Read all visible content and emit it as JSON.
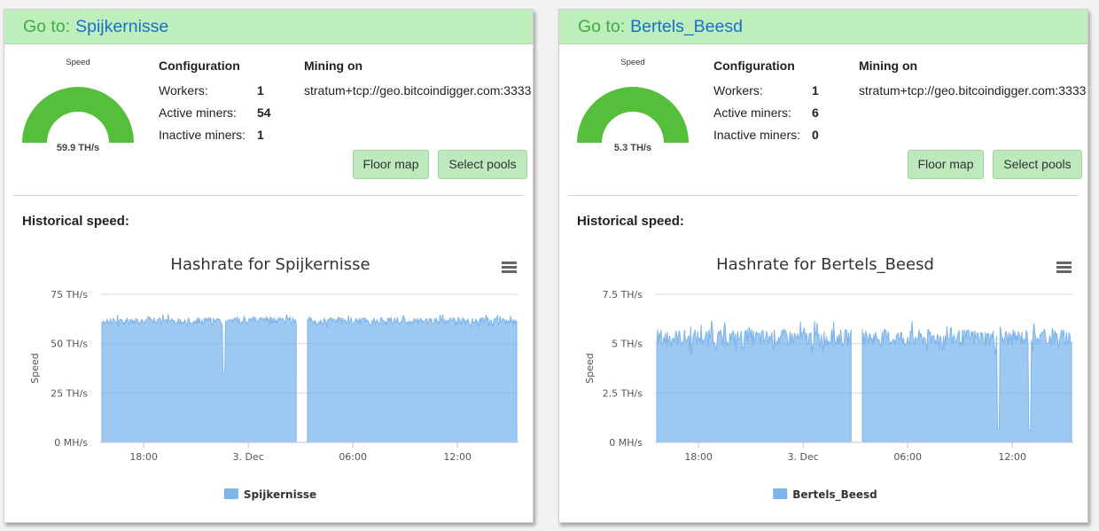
{
  "sites": [
    {
      "goto_label": "Go to:",
      "name": "Spijkernisse",
      "gauge": {
        "title": "Speed",
        "value_text": "59.9 TH/s",
        "fraction": 1.0,
        "color": "#55bf3b"
      },
      "config": {
        "heading": "Configuration",
        "workers_label": "Workers:",
        "workers": "1",
        "active_label": "Active miners:",
        "active": "54",
        "inactive_label": "Inactive miners:",
        "inactive": "1"
      },
      "mining": {
        "heading": "Mining on",
        "url": "stratum+tcp://geo.bitcoindigger.com:3333"
      },
      "buttons": {
        "floor_map": "Floor map",
        "select_pools": "Select pools"
      },
      "historical_label": "Historical speed:",
      "chart_data": {
        "type": "area",
        "title": "Hashrate for Spijkernisse",
        "ylabel": "Speed",
        "yticks": [
          "0 MH/s",
          "25 TH/s",
          "50 TH/s",
          "75 TH/s"
        ],
        "ylim": [
          0,
          75
        ],
        "x_ticks": [
          {
            "label": "18:00",
            "hour": 18
          },
          {
            "label": "3. Dec",
            "hour": 24
          },
          {
            "label": "06:00",
            "hour": 30
          },
          {
            "label": "12:00",
            "hour": 36
          }
        ],
        "x_range_hours": [
          15.5,
          39.5
        ],
        "baseline": 61.5,
        "noise": 2.2,
        "gaps": [
          [
            26.8,
            27.4
          ]
        ],
        "dips": [
          {
            "hour": 22.6,
            "value": 35
          }
        ],
        "legend": "Spijkernisse",
        "color": "#7cb5ec",
        "grid": true
      }
    },
    {
      "goto_label": "Go to:",
      "name": "Bertels_Beesd",
      "gauge": {
        "title": "Speed",
        "value_text": "5.3 TH/s",
        "fraction": 1.0,
        "color": "#55bf3b"
      },
      "config": {
        "heading": "Configuration",
        "workers_label": "Workers:",
        "workers": "1",
        "active_label": "Active miners:",
        "active": "6",
        "inactive_label": "Inactive miners:",
        "inactive": "0"
      },
      "mining": {
        "heading": "Mining on",
        "url": "stratum+tcp://geo.bitcoindigger.com:3333"
      },
      "buttons": {
        "floor_map": "Floor map",
        "select_pools": "Select pools"
      },
      "historical_label": "Historical speed:",
      "chart_data": {
        "type": "area",
        "title": "Hashrate for Bertels_Beesd",
        "ylabel": "Speed",
        "yticks": [
          "0 MH/s",
          "2.5 TH/s",
          "5 TH/s",
          "7.5 TH/s"
        ],
        "ylim": [
          0,
          7.5
        ],
        "x_ticks": [
          {
            "label": "18:00",
            "hour": 18
          },
          {
            "label": "3. Dec",
            "hour": 24
          },
          {
            "label": "06:00",
            "hour": 30
          },
          {
            "label": "12:00",
            "hour": 36
          }
        ],
        "x_range_hours": [
          15.5,
          39.5
        ],
        "baseline": 5.3,
        "noise": 0.55,
        "gaps": [
          [
            26.8,
            27.4
          ]
        ],
        "dips": [
          {
            "hour": 35.2,
            "value": 0.7
          },
          {
            "hour": 37.0,
            "value": 0.6
          }
        ],
        "legend": "Bertels_Beesd",
        "color": "#7cb5ec",
        "grid": true
      }
    }
  ]
}
